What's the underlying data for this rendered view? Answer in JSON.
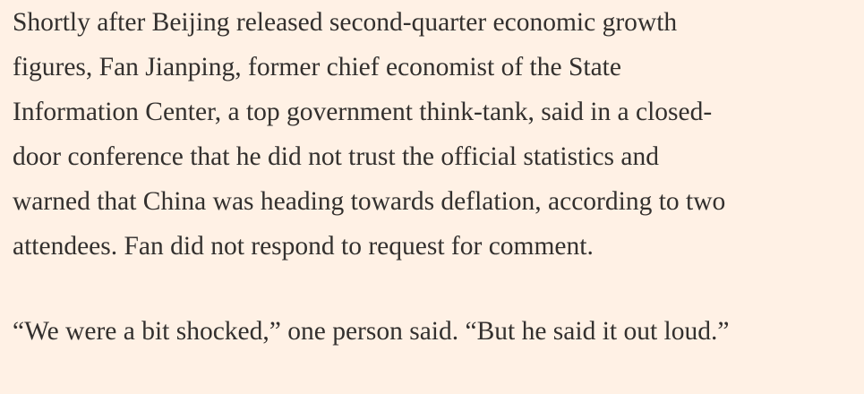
{
  "paragraphs": [
    {
      "lines": [
        "Shortly after Beijing released second-quarter economic growth",
        "figures, Fan Jianping, former chief economist of the State",
        "Information Center, a top government think-tank, said in a closed-",
        "door conference that he did not trust the official statistics and",
        "warned that China was heading towards deflation, according to two",
        "attendees. Fan did not respond to request for comment."
      ]
    },
    {
      "lines": [
        "“We were a bit shocked,” one person said. “But he said it out loud.”"
      ]
    }
  ]
}
